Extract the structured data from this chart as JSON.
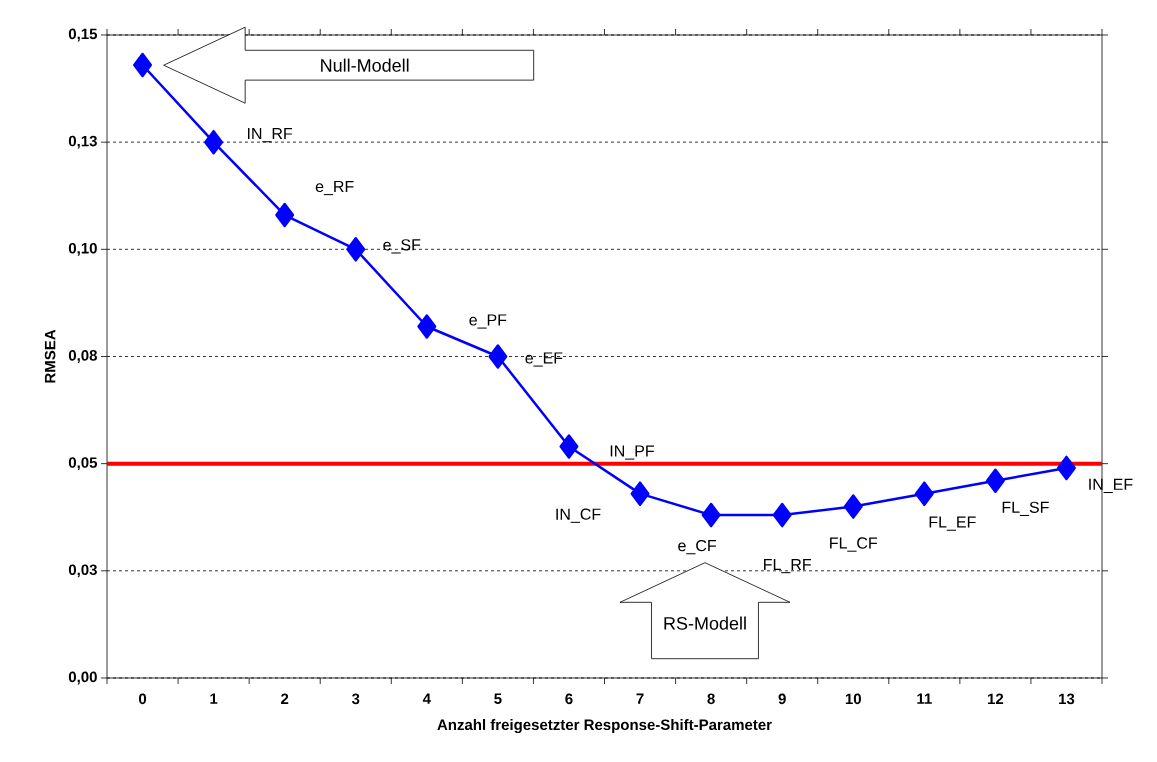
{
  "chart_data": {
    "type": "line",
    "xlabel": "Anzahl freigesetzter Response-Shift-Parameter",
    "ylabel": "RMSEA",
    "categories": [
      "0",
      "1",
      "2",
      "3",
      "4",
      "5",
      "6",
      "7",
      "8",
      "9",
      "10",
      "11",
      "12",
      "13"
    ],
    "series": [
      {
        "color": "#0000ff",
        "values": [
          0.143,
          0.125,
          0.108,
          0.1,
          0.082,
          0.075,
          0.054,
          0.043,
          0.038,
          0.038,
          0.04,
          0.043,
          0.046,
          0.049
        ]
      }
    ],
    "ylim": [
      0,
      0.15
    ],
    "yticks": [
      {
        "value": 0,
        "label": "0,00"
      },
      {
        "value": 0.025,
        "label": "0,03"
      },
      {
        "value": 0.05,
        "label": "0,05"
      },
      {
        "value": 0.075,
        "label": "0,08"
      },
      {
        "value": 0.1,
        "label": "0,10"
      },
      {
        "value": 0.125,
        "label": "0,13"
      },
      {
        "value": 0.15,
        "label": "0,15"
      }
    ],
    "grid": "y",
    "marker": "diamond",
    "line_style": "solid",
    "ref_lines": [
      {
        "axis": "y",
        "value": 0.05,
        "color": "#ff0000"
      }
    ],
    "annotations": [
      "Null-Modell",
      {
        "text": "IN_RF",
        "x": "1",
        "y": 0.125
      },
      {
        "text": "e_RF",
        "x": "2",
        "y": 0.108
      },
      {
        "text": "e_SF",
        "x": "3",
        "y": 0.1
      },
      {
        "text": "e_PF",
        "x": "4",
        "y": 0.082
      },
      {
        "text": "e_EF",
        "x": "5",
        "y": 0.075
      },
      {
        "text": "IN_PF",
        "x": "6",
        "y": 0.054
      },
      {
        "text": "IN_CF",
        "x": "7",
        "y": 0.043
      },
      {
        "text": "e_CF",
        "x": "8",
        "y": 0.038
      },
      {
        "text": "FL_RF",
        "x": "9",
        "y": 0.038
      },
      {
        "text": "FL_CF",
        "x": "10",
        "y": 0.04
      },
      {
        "text": "FL_EF",
        "x": "11",
        "y": 0.043
      },
      {
        "text": "FL_SF",
        "x": "12",
        "y": 0.046
      },
      {
        "text": "IN_EF",
        "x": "13",
        "y": 0.049
      },
      "RS-Modell"
    ]
  }
}
